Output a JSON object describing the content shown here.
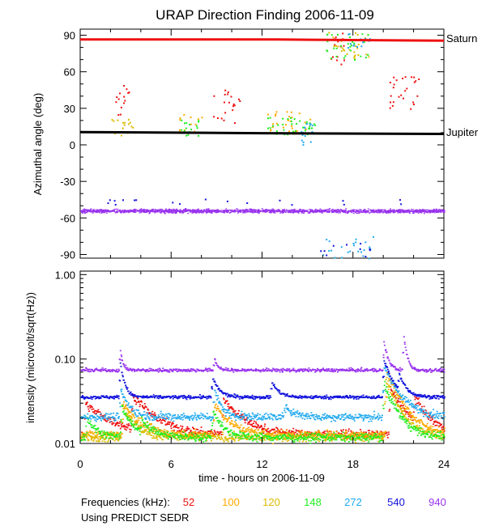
{
  "chart_data": {
    "type": "scatter",
    "title": "URAP Direction Finding  2006-11-09",
    "xlabel": "time - hours on 2006-11-09",
    "x_range": [
      0,
      24
    ],
    "x_ticks": [
      "0",
      "6",
      "12",
      "18",
      "24"
    ],
    "footnote": "Using PREDICT SEDR",
    "legend_title": "Frequencies (kHz):",
    "series_colors": {
      "52": "#ee1111",
      "100": "#ffaa00",
      "120": "#ddbb00",
      "148": "#22ee22",
      "272": "#22aaee",
      "540": "#1111dd",
      "940": "#9933ee"
    },
    "legend": [
      {
        "label": "52",
        "color": "#ee1111"
      },
      {
        "label": "100",
        "color": "#ffaa00"
      },
      {
        "label": "120",
        "color": "#ddbb00"
      },
      {
        "label": "148",
        "color": "#22ee22"
      },
      {
        "label": "272",
        "color": "#22aaee"
      },
      {
        "label": "540",
        "color": "#1111dd"
      },
      {
        "label": "940",
        "color": "#9933ee"
      }
    ],
    "panels": [
      {
        "ylabel": "Azimuthal angle (deg)",
        "yscale": "linear",
        "ylim": [
          -93,
          95
        ],
        "y_ticks": [
          {
            "v": 90,
            "label": "90"
          },
          {
            "v": 60,
            "label": "60"
          },
          {
            "v": 30,
            "label": "30"
          },
          {
            "v": 0,
            "label": "0"
          },
          {
            "v": -30,
            "label": "-30"
          },
          {
            "v": -60,
            "label": "-60"
          },
          {
            "v": -90,
            "label": "-90"
          }
        ],
        "reference_lines": [
          {
            "name": "Saturn",
            "color": "#ee1111",
            "points": [
              [
                0,
                86.5
              ],
              [
                13,
                86.5
              ],
              [
                24,
                85.5
              ]
            ]
          },
          {
            "name": "Jupiter",
            "color": "#000000",
            "points": [
              [
                0,
                10.5
              ],
              [
                12,
                9.6
              ],
              [
                24,
                9.0
              ]
            ]
          }
        ],
        "background_band": {
          "series": "940",
          "center": -54,
          "spread": 2.6
        },
        "clusters": [
          {
            "series": "52",
            "x": [
              2.3,
              3.2
            ],
            "y": [
              24,
              54
            ],
            "n": 14
          },
          {
            "series": "52",
            "x": [
              8.5,
              10.6
            ],
            "y": [
              18,
              46
            ],
            "n": 20
          },
          {
            "series": "52",
            "x": [
              16.5,
              17.4
            ],
            "y": [
              65,
              93
            ],
            "n": 14
          },
          {
            "series": "52",
            "x": [
              20.4,
              22.7
            ],
            "y": [
              30,
              60
            ],
            "n": 26
          },
          {
            "series": "100",
            "x": [
              6.5,
              8.0
            ],
            "y": [
              10,
              26
            ],
            "n": 14
          },
          {
            "series": "100",
            "x": [
              12.3,
              15.2
            ],
            "y": [
              10,
              28
            ],
            "n": 30
          },
          {
            "series": "120",
            "x": [
              1.8,
              3.5
            ],
            "y": [
              8,
              22
            ],
            "n": 16
          },
          {
            "series": "120",
            "x": [
              16.2,
              19.2
            ],
            "y": [
              70,
              93
            ],
            "n": 30
          },
          {
            "series": "148",
            "x": [
              12.3,
              15.5
            ],
            "y": [
              8,
              24
            ],
            "n": 36
          },
          {
            "series": "148",
            "x": [
              16.2,
              19.0
            ],
            "y": [
              70,
              93
            ],
            "n": 28
          },
          {
            "series": "148",
            "x": [
              6.6,
              7.8
            ],
            "y": [
              8,
              22
            ],
            "n": 16
          },
          {
            "series": "272",
            "x": [
              14.3,
              15.3
            ],
            "y": [
              -2,
              20
            ],
            "n": 16
          },
          {
            "series": "272",
            "x": [
              15.8,
              19.3
            ],
            "y": [
              -93,
              -72
            ],
            "n": 24
          },
          {
            "series": "272",
            "x": [
              17.5,
              19.1
            ],
            "y": [
              80,
              93
            ],
            "n": 14
          },
          {
            "series": "540",
            "x": [
              1.4,
              22.8
            ],
            "y": [
              -49,
              -44
            ],
            "n": 18
          },
          {
            "series": "540",
            "x": [
              15.8,
              19.3
            ],
            "y": [
              -93,
              -76
            ],
            "n": 10
          }
        ]
      },
      {
        "ylabel": "intensity (microvolt/sqrt(Hz))",
        "yscale": "log",
        "ylim": [
          0.01,
          1.1
        ],
        "y_ticks": [
          {
            "v": 1.0,
            "label": "1.00"
          },
          {
            "v": 0.1,
            "label": "0.10"
          },
          {
            "v": 0.01,
            "label": "0.01"
          }
        ],
        "baselines": [
          {
            "series": "940",
            "level": 0.075
          },
          {
            "series": "540",
            "level": 0.036
          },
          {
            "series": "272",
            "level": 0.021
          },
          {
            "series": "52",
            "level": 0.013
          },
          {
            "series": "100",
            "level": 0.013
          },
          {
            "series": "120",
            "level": 0.012
          },
          {
            "series": "148",
            "level": 0.012
          }
        ],
        "bursts": [
          {
            "series": "940",
            "t": 2.6,
            "peak": 0.13,
            "decay": 0.15
          },
          {
            "series": "940",
            "t": 8.8,
            "peak": 0.105,
            "decay": 0.2
          },
          {
            "series": "940",
            "t": 20.0,
            "peak": 0.16,
            "decay": 0.25
          },
          {
            "series": "940",
            "t": 21.3,
            "peak": 0.19,
            "decay": 0.2
          },
          {
            "series": "540",
            "t": 2.6,
            "peak": 0.09,
            "decay": 0.25
          },
          {
            "series": "540",
            "t": 8.7,
            "peak": 0.06,
            "decay": 0.4
          },
          {
            "series": "540",
            "t": 12.6,
            "peak": 0.055,
            "decay": 0.4
          },
          {
            "series": "540",
            "t": 20.0,
            "peak": 0.1,
            "decay": 0.5
          },
          {
            "series": "540",
            "t": 21.0,
            "peak": 0.06,
            "decay": 0.4
          },
          {
            "series": "272",
            "t": 2.6,
            "peak": 0.045,
            "decay": 0.5
          },
          {
            "series": "272",
            "t": 8.8,
            "peak": 0.045,
            "decay": 0.4
          },
          {
            "series": "272",
            "t": 13.5,
            "peak": 0.028,
            "decay": 0.6
          },
          {
            "series": "272",
            "t": 20.0,
            "peak": 0.08,
            "decay": 0.9
          },
          {
            "series": "52",
            "t": 0.3,
            "peak": 0.03,
            "decay": 1.6
          },
          {
            "series": "52",
            "t": 3.4,
            "peak": 0.036,
            "decay": 1.3
          },
          {
            "series": "52",
            "t": 9.4,
            "peak": 0.034,
            "decay": 1.2
          },
          {
            "series": "52",
            "t": 20.4,
            "peak": 0.045,
            "decay": 1.0
          },
          {
            "series": "52",
            "t": 22.0,
            "peak": 0.03,
            "decay": 0.9
          },
          {
            "series": "100",
            "t": 2.8,
            "peak": 0.03,
            "decay": 0.9
          },
          {
            "series": "100",
            "t": 8.8,
            "peak": 0.03,
            "decay": 0.9
          },
          {
            "series": "100",
            "t": 20.2,
            "peak": 0.07,
            "decay": 0.9
          },
          {
            "series": "120",
            "t": 2.7,
            "peak": 0.03,
            "decay": 0.7
          },
          {
            "series": "120",
            "t": 20.1,
            "peak": 0.06,
            "decay": 0.8
          },
          {
            "series": "148",
            "t": 0.4,
            "peak": 0.02,
            "decay": 0.6
          },
          {
            "series": "148",
            "t": 2.7,
            "peak": 0.028,
            "decay": 0.6
          },
          {
            "series": "148",
            "t": 4.0,
            "peak": 0.018,
            "decay": 0.8
          },
          {
            "series": "148",
            "t": 8.7,
            "peak": 0.025,
            "decay": 0.6
          },
          {
            "series": "148",
            "t": 20.0,
            "peak": 0.05,
            "decay": 0.8
          }
        ]
      }
    ]
  }
}
